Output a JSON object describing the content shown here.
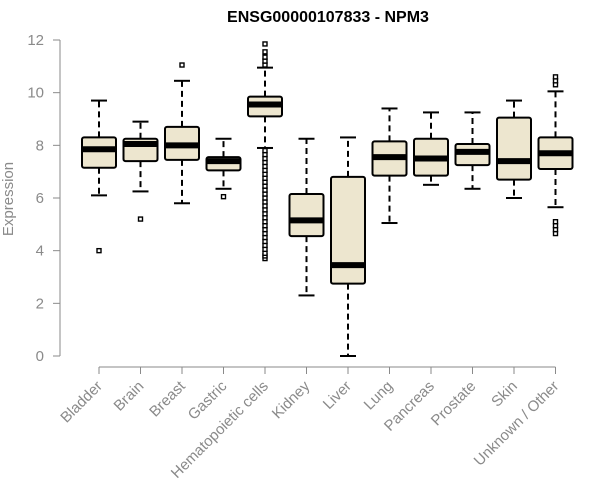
{
  "chart_data": {
    "type": "box",
    "title": "ENSG00000107833 - NPM3",
    "xlabel": "",
    "ylabel": "Expression",
    "ylim": [
      0,
      12
    ],
    "yticks": [
      0,
      2,
      4,
      6,
      8,
      10,
      12
    ],
    "grid": false,
    "colors": {
      "box_fill": "#ede6cf",
      "box_stroke": "#000000",
      "median": "#000000",
      "axis": "#8a8a8a"
    },
    "categories": [
      "Bladder",
      "Brain",
      "Breast",
      "Gastric",
      "Hematopoietic cells",
      "Kidney",
      "Liver",
      "Lung",
      "Pancreas",
      "Prostate",
      "Skin",
      "Unknown / Other"
    ],
    "boxes": [
      {
        "category": "Bladder",
        "whisker_low": 6.1,
        "q1": 7.15,
        "median": 7.85,
        "q3": 8.3,
        "whisker_high": 9.7,
        "outliers": [
          4.0
        ]
      },
      {
        "category": "Brain",
        "whisker_low": 6.25,
        "q1": 7.4,
        "median": 8.05,
        "q3": 8.25,
        "whisker_high": 8.9,
        "outliers": [
          5.2
        ]
      },
      {
        "category": "Breast",
        "whisker_low": 5.8,
        "q1": 7.45,
        "median": 8.0,
        "q3": 8.7,
        "whisker_high": 10.45,
        "outliers": [
          11.05
        ]
      },
      {
        "category": "Gastric",
        "whisker_low": 6.35,
        "q1": 7.05,
        "median": 7.4,
        "q3": 7.55,
        "whisker_high": 8.25,
        "outliers": [
          6.05
        ]
      },
      {
        "category": "Hematopoietic cells",
        "whisker_low": 7.9,
        "q1": 9.1,
        "median": 9.55,
        "q3": 9.85,
        "whisker_high": 10.95,
        "outliers": [
          3.7,
          3.8,
          3.9,
          4.05,
          4.2,
          4.35,
          4.5,
          4.65,
          4.8,
          4.95,
          5.1,
          5.25,
          5.4,
          5.55,
          5.7,
          5.85,
          6.0,
          6.15,
          6.3,
          6.45,
          6.6,
          6.75,
          6.9,
          7.05,
          7.2,
          7.35,
          7.5,
          7.65,
          7.8,
          11.05,
          11.2,
          11.35,
          11.55,
          11.85
        ]
      },
      {
        "category": "Kidney",
        "whisker_low": 2.3,
        "q1": 4.55,
        "median": 5.15,
        "q3": 6.15,
        "whisker_high": 8.25,
        "outliers": []
      },
      {
        "category": "Liver",
        "whisker_low": 0.0,
        "q1": 2.75,
        "median": 3.45,
        "q3": 6.8,
        "whisker_high": 8.3,
        "outliers": []
      },
      {
        "category": "Lung",
        "whisker_low": 5.05,
        "q1": 6.85,
        "median": 7.55,
        "q3": 8.15,
        "whisker_high": 9.4,
        "outliers": []
      },
      {
        "category": "Pancreas",
        "whisker_low": 6.5,
        "q1": 6.85,
        "median": 7.5,
        "q3": 8.25,
        "whisker_high": 9.25,
        "outliers": []
      },
      {
        "category": "Prostate",
        "whisker_low": 6.35,
        "q1": 7.25,
        "median": 7.75,
        "q3": 8.05,
        "whisker_high": 9.25,
        "outliers": []
      },
      {
        "category": "Skin",
        "whisker_low": 6.0,
        "q1": 6.7,
        "median": 7.4,
        "q3": 9.05,
        "whisker_high": 9.7,
        "outliers": []
      },
      {
        "category": "Unknown / Other",
        "whisker_low": 5.65,
        "q1": 7.1,
        "median": 7.7,
        "q3": 8.3,
        "whisker_high": 10.05,
        "outliers": [
          4.65,
          4.8,
          4.95,
          5.1,
          10.3,
          10.45,
          10.6
        ]
      }
    ]
  }
}
